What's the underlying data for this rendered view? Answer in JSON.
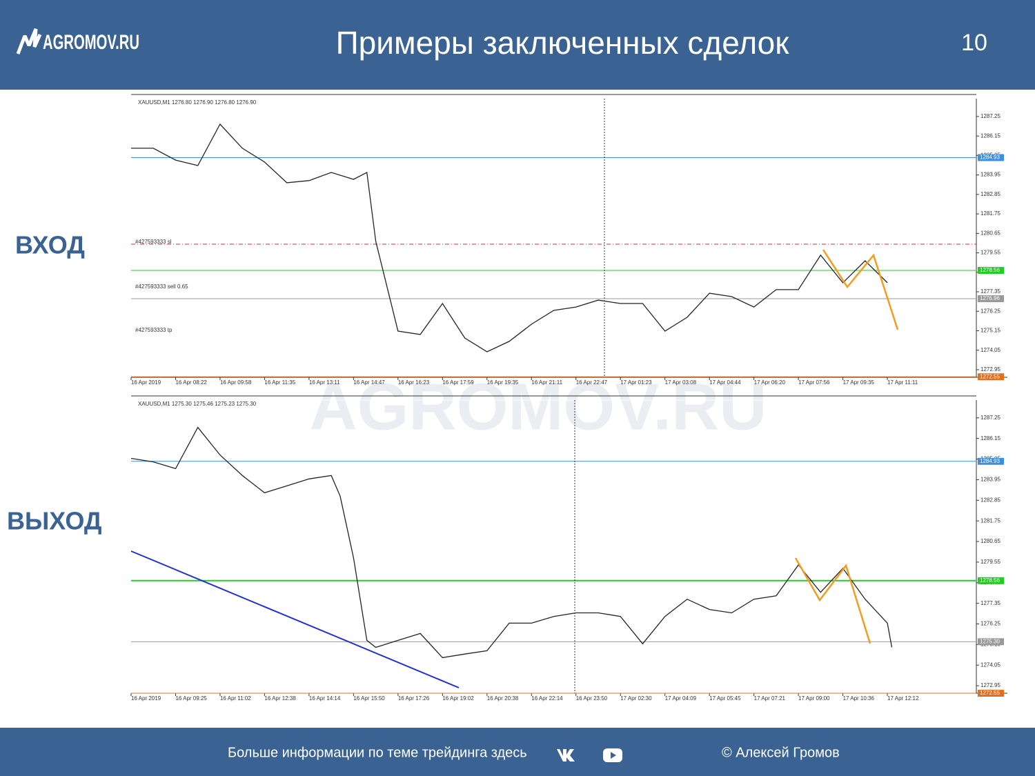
{
  "header": {
    "logo": "AGROMOV.RU",
    "title": "Примеры заключенных сделок",
    "page": "10"
  },
  "labels": {
    "entry": "ВХОД",
    "exit": "ВЫХОД"
  },
  "watermark": "AGROMOV.RU",
  "footer": {
    "text": "Больше информации по теме трейдинга здесь",
    "copyright": "© Алексей Громов"
  },
  "chart_data": [
    {
      "type": "line",
      "title": "XAUUSD,M1  1276.80 1276.90 1276.80 1276.90",
      "color": "#222222",
      "x": [
        0,
        5,
        10,
        15,
        20,
        25,
        30,
        35,
        40,
        45,
        50,
        53,
        55,
        60,
        65,
        70,
        75,
        80,
        85,
        90,
        95,
        100,
        105,
        110,
        115,
        120,
        125,
        130,
        135,
        140,
        145,
        150,
        155,
        160,
        165,
        170
      ],
      "values": [
        1285.46,
        1285.46,
        1284.79,
        1284.48,
        1286.82,
        1285.46,
        1284.68,
        1283.51,
        1283.63,
        1284.09,
        1283.7,
        1284.09,
        1280.2,
        1275.13,
        1274.94,
        1276.69,
        1274.74,
        1273.96,
        1274.55,
        1275.52,
        1276.3,
        1276.49,
        1276.88,
        1276.69,
        1276.69,
        1275.13,
        1275.91,
        1277.27,
        1277.08,
        1276.49,
        1277.47,
        1277.47,
        1279.42,
        1277.86,
        1279.1,
        1277.86
      ],
      "xlim": [
        0,
        190
      ],
      "xticks": [
        {
          "value": 0,
          "label": "16 Apr 2019"
        },
        {
          "value": 10,
          "label": "16 Apr 08:22"
        },
        {
          "value": 20,
          "label": "16 Apr 09:58"
        },
        {
          "value": 30,
          "label": "16 Apr 11:35"
        },
        {
          "value": 40,
          "label": "16 Apr 13:11"
        },
        {
          "value": 50,
          "label": "16 Apr 14:47"
        },
        {
          "value": 60,
          "label": "16 Apr 16:23"
        },
        {
          "value": 70,
          "label": "16 Apr 17:59"
        },
        {
          "value": 80,
          "label": "16 Apr 19:35"
        },
        {
          "value": 90,
          "label": "16 Apr 21:11"
        },
        {
          "value": 100,
          "label": "16 Apr 22:47"
        },
        {
          "value": 110,
          "label": "17 Apr 01:23"
        },
        {
          "value": 120,
          "label": "17 Apr 03:08"
        },
        {
          "value": 130,
          "label": "17 Apr 04:44"
        },
        {
          "value": 140,
          "label": "17 Apr 06:20"
        },
        {
          "value": 150,
          "label": "17 Apr 07:56"
        },
        {
          "value": 160,
          "label": "17 Apr 09:35"
        },
        {
          "value": 170,
          "label": "17 Apr 11:11"
        }
      ],
      "ylim": [
        1272.52,
        1288.26
      ],
      "yticks": [
        1287.25,
        1286.15,
        1285.05,
        1283.95,
        1282.85,
        1281.75,
        1280.65,
        1279.55,
        1278.45,
        1277.35,
        1276.25,
        1275.15,
        1274.05,
        1272.95
      ],
      "levels": [
        {
          "value": 1284.93,
          "label": "1284.93",
          "color": "#3c8fe0"
        },
        {
          "value": 1280.04,
          "color": "#d03030",
          "dash": true
        },
        {
          "value": 1278.56,
          "label": "1278.56",
          "color": "#22cc22"
        },
        {
          "value": 1276.96,
          "label": "1276.96",
          "color": "#999999"
        },
        {
          "value": 1272.55,
          "label": "1272.55",
          "color": "#e07020"
        }
      ],
      "annotations": [
        "#427593333 sl",
        "#427593333 sell 0.65",
        "#427593333 tp"
      ]
    },
    {
      "type": "line",
      "title": "XAUUSD,M1  1275.30 1275.46 1275.23 1275.30",
      "color": "#222222",
      "x": [
        0,
        5,
        10,
        15,
        20,
        25,
        30,
        35,
        40,
        45,
        47,
        50,
        53,
        55,
        60,
        65,
        70,
        75,
        80,
        85,
        90,
        95,
        100,
        105,
        110,
        115,
        120,
        125,
        130,
        135,
        140,
        145,
        150,
        155,
        160,
        165,
        170,
        171
      ],
      "values": [
        1285.09,
        1284.9,
        1284.54,
        1286.74,
        1285.27,
        1284.17,
        1283.25,
        1283.62,
        1283.99,
        1284.17,
        1283.07,
        1279.77,
        1275.37,
        1275.0,
        1275.37,
        1275.74,
        1274.45,
        1274.64,
        1274.82,
        1276.29,
        1276.29,
        1276.65,
        1276.84,
        1276.84,
        1276.65,
        1275.19,
        1276.65,
        1277.57,
        1277.02,
        1276.84,
        1277.57,
        1277.75,
        1279.4,
        1277.94,
        1279.22,
        1277.57,
        1276.29,
        1275.0
      ],
      "xlim": [
        0,
        190
      ],
      "xticks": [
        {
          "value": 0,
          "label": "16 Apr 2019"
        },
        {
          "value": 10,
          "label": "16 Apr 09:25"
        },
        {
          "value": 20,
          "label": "16 Apr 11:02"
        },
        {
          "value": 30,
          "label": "16 Apr 12:38"
        },
        {
          "value": 40,
          "label": "16 Apr 14:14"
        },
        {
          "value": 50,
          "label": "16 Apr 15:50"
        },
        {
          "value": 60,
          "label": "16 Apr 17:26"
        },
        {
          "value": 70,
          "label": "16 Apr 19:02"
        },
        {
          "value": 80,
          "label": "16 Apr 20:38"
        },
        {
          "value": 90,
          "label": "16 Apr 22:14"
        },
        {
          "value": 100,
          "label": "16 Apr 23:50"
        },
        {
          "value": 110,
          "label": "17 Apr 02:30"
        },
        {
          "value": 120,
          "label": "17 Apr 04:09"
        },
        {
          "value": 130,
          "label": "17 Apr 05:45"
        },
        {
          "value": 140,
          "label": "17 Apr 07:21"
        },
        {
          "value": 150,
          "label": "17 Apr 09:00"
        },
        {
          "value": 160,
          "label": "17 Apr 10:36"
        },
        {
          "value": 170,
          "label": "17 Apr 12:12"
        }
      ],
      "ylim": [
        1272.55,
        1288.2
      ],
      "yticks": [
        1287.25,
        1286.15,
        1285.05,
        1283.95,
        1282.85,
        1281.75,
        1280.65,
        1279.55,
        1278.45,
        1277.35,
        1276.25,
        1275.15,
        1274.05,
        1272.95
      ],
      "levels": [
        {
          "value": 1284.93,
          "label": "1284.93",
          "color": "#3c8fe0"
        },
        {
          "value": 1278.56,
          "label": "1278.56",
          "color": "#22cc22",
          "width": 2
        },
        {
          "value": 1275.3,
          "label": "1275.30",
          "color": "#999999"
        },
        {
          "value": 1272.55,
          "label": "1272.55",
          "color": "#e07020"
        }
      ]
    }
  ]
}
